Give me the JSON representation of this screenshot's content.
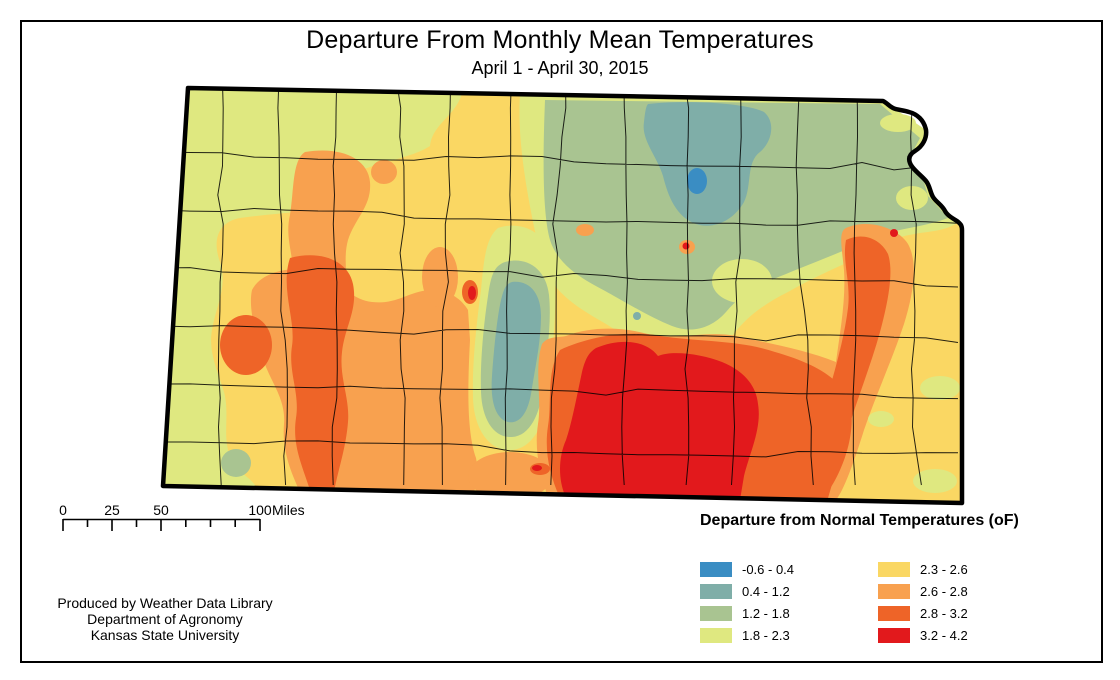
{
  "title": "Departure From Monthly Mean Temperatures",
  "subtitle": "April 1 - April 30, 2015",
  "colors": {
    "blue": "#3A8DC3",
    "teal": "#7FAEA8",
    "sage": "#A9C491",
    "ygreen": "#DFE880",
    "yellow": "#FAD763",
    "orange": "#F8A14F",
    "dorange": "#EE6428",
    "red": "#E2191C"
  },
  "legend": {
    "title": "Departure from Normal Temperatures (oF)",
    "items": [
      {
        "label": "-0.6 - 0.4",
        "color_key": "blue"
      },
      {
        "label": "0.4 - 1.2",
        "color_key": "teal"
      },
      {
        "label": "1.2 - 1.8",
        "color_key": "sage"
      },
      {
        "label": "1.8 - 2.3",
        "color_key": "ygreen"
      },
      {
        "label": "2.3 - 2.6",
        "color_key": "yellow"
      },
      {
        "label": "2.6 - 2.8",
        "color_key": "orange"
      },
      {
        "label": "2.8 - 3.2",
        "color_key": "dorange"
      },
      {
        "label": "3.2 - 4.2",
        "color_key": "red"
      }
    ]
  },
  "scale_bar": {
    "ticks": [
      "0",
      "25",
      "50",
      "100"
    ],
    "unit": "Miles"
  },
  "credits": {
    "lines": [
      "Produced by Weather Data Library",
      "Department of Agronomy",
      "Kansas State University"
    ]
  }
}
